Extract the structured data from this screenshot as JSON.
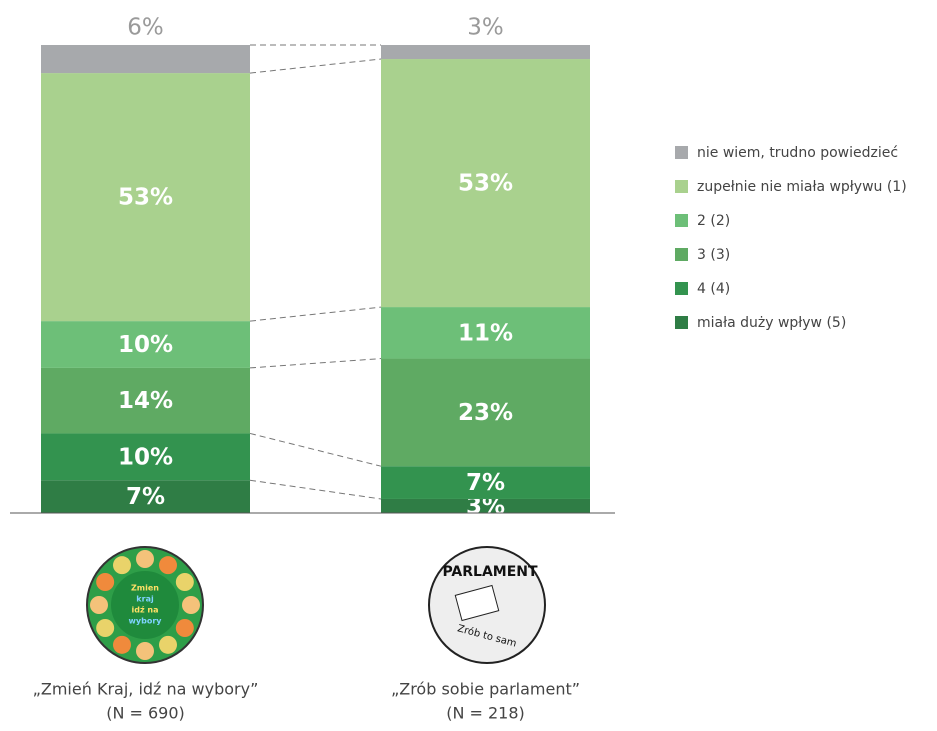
{
  "chart_data": {
    "type": "stacked-bar",
    "categories": [
      "„Zmień Kraj, idź na wybory”",
      "„Zrób sobie parlament”"
    ],
    "sample_sizes": [
      "(N = 690)",
      "(N = 218)"
    ],
    "logos": [
      [
        "Zmien",
        "kraj",
        "idź na",
        "wybory"
      ],
      [
        "PARLAMENT",
        "Zrób to sam"
      ]
    ],
    "ylim": [
      0,
      100
    ],
    "series": [
      {
        "name": "nie wiem, trudno powiedzieć",
        "color": "#a7a9ac",
        "values": [
          6,
          3
        ],
        "value_labels": [
          "6%",
          "3%"
        ]
      },
      {
        "name": "zupełnie nie miała wpływu (1)",
        "color": "#a9d18e",
        "values": [
          53,
          53
        ],
        "value_labels": [
          "53%",
          "53%"
        ]
      },
      {
        "name": "2 (2)",
        "color": "#6dbf78",
        "values": [
          10,
          11
        ],
        "value_labels": [
          "10%",
          "11%"
        ]
      },
      {
        "name": "3 (3)",
        "color": "#5faa63",
        "values": [
          14,
          23
        ],
        "value_labels": [
          "14%",
          "23%"
        ]
      },
      {
        "name": "4 (4)",
        "color": "#33934f",
        "values": [
          10,
          7
        ],
        "value_labels": [
          "10%",
          "7%"
        ]
      },
      {
        "name": "miała duży wpływ (5)",
        "color": "#2f7d45",
        "values": [
          7,
          3
        ],
        "value_labels": [
          "7%",
          "3%"
        ]
      }
    ]
  }
}
